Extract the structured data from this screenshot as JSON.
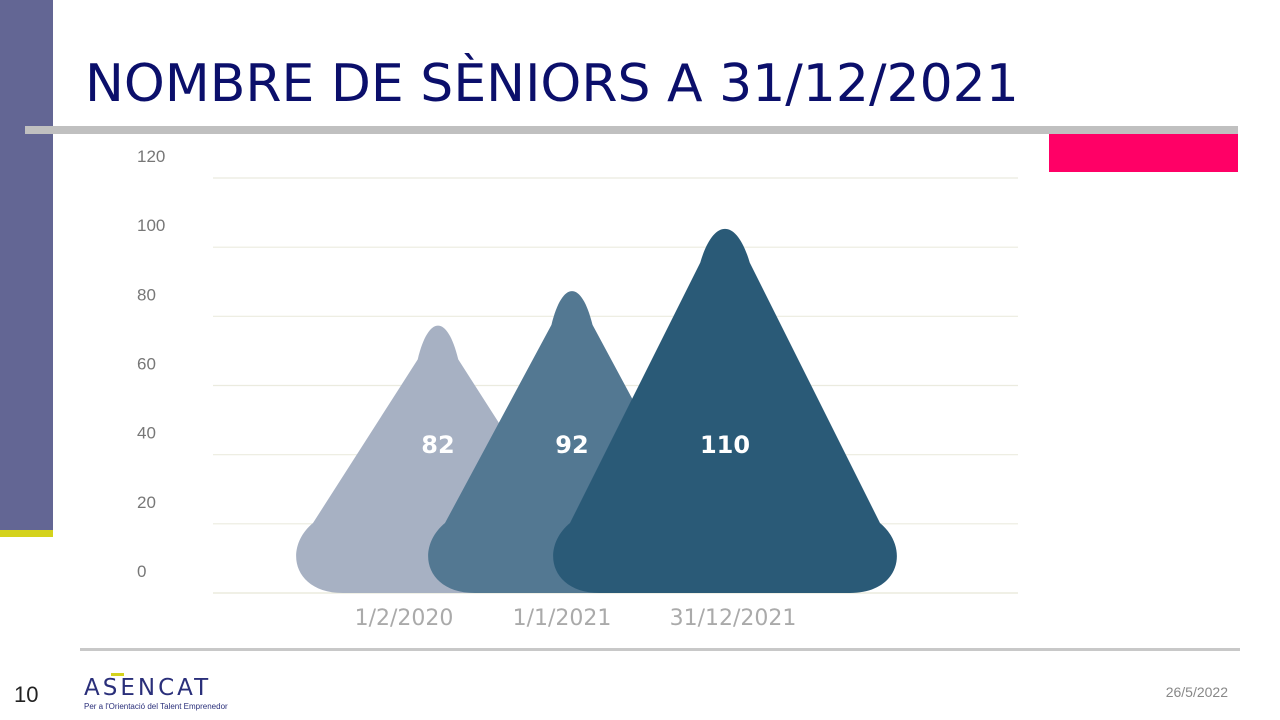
{
  "slide": {
    "title": "NOMBRE DE SÈNIORS A 31/12/2021",
    "page_number": "10",
    "date": "26/5/2022"
  },
  "logo": {
    "name": "ASENCAT",
    "tagline": "Per a l'Orientació del Talent Emprenedor"
  },
  "colors": {
    "side_bar": "#636694",
    "accent_yellow": "#d4d21c",
    "title": "#0b0f6b",
    "pink": "#ff0066"
  },
  "chart_data": {
    "type": "bar",
    "title": "",
    "xlabel": "",
    "ylabel": "",
    "categories": [
      "1/2/2020",
      "1/1/2021",
      "31/12/2021"
    ],
    "values": [
      82,
      92,
      110
    ],
    "data_labels": [
      "82",
      "92",
      "110"
    ],
    "colors": [
      "#a7b1c3",
      "#537892",
      "#2a5a77"
    ],
    "ylim": [
      0,
      120
    ],
    "yticks": [
      "0",
      "20",
      "40",
      "60",
      "80",
      "100",
      "120"
    ],
    "grid": true,
    "legend": "none"
  }
}
